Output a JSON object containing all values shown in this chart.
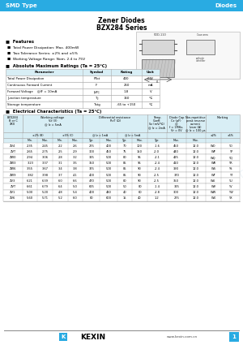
{
  "header_bg": "#29ABE2",
  "header_text_left": "SMD Type",
  "header_text_right": "Diodes",
  "title1": "Zener Diodes",
  "title2": "BZX284 Series",
  "features_header": "■  Features",
  "features": [
    "■  Total Power Dissipation: Max. 400mW",
    "■  Two Tolerance Series: ±2% and ±5%",
    "■  Working Voltage Range: Nom. 2.4 to 75V"
  ],
  "abs_max_header": "■  Absolute Maximum Ratings (Ta = 25℃)",
  "abs_max_cols": [
    "Parameter",
    "Symbol",
    "Rating",
    "Unit"
  ],
  "abs_max_rows": [
    [
      "Total Power Dissipation",
      "PTot",
      "400",
      "mW"
    ],
    [
      "Continuous Forward Current",
      "IF",
      "250",
      "mA"
    ],
    [
      "Forward Voltage    @IF = 10mA",
      "|VF|",
      "1.8",
      "V"
    ],
    [
      "Junction temperature",
      "Tj",
      "150",
      "℃"
    ],
    [
      "Storage temperature",
      "Tstg",
      "-65 to +150",
      "℃"
    ]
  ],
  "elec_header": "■  Electrical Characteristics (Ta = 25℃)",
  "elec_rows": [
    [
      "ZV4",
      "2.35",
      "2.45",
      "2.2",
      "2.6",
      "275",
      "400",
      "70",
      "100",
      "-1.6",
      "450",
      "12.0",
      "WO",
      "YO"
    ],
    [
      "ZVT",
      "2.65",
      "2.75",
      "2.5",
      "2.9",
      "300",
      "450",
      "75",
      "150",
      "-2.0",
      "440",
      "12.0",
      "WP",
      "YP"
    ],
    [
      "ZW0",
      "2.94",
      "3.06",
      "2.8",
      "3.2",
      "325",
      "500",
      "80",
      "95",
      "-2.1",
      "425",
      "12.0",
      "WQ",
      "YQ"
    ],
    [
      "ZW3",
      "3.23",
      "3.37",
      "3.1",
      "3.5",
      "350",
      "500",
      "85",
      "95",
      "-2.4",
      "410",
      "12.0",
      "WR",
      "YR"
    ],
    [
      "ZW6",
      "3.55",
      "3.67",
      "3.4",
      "3.8",
      "375",
      "500",
      "85",
      "90",
      "-2.4",
      "390",
      "12.0",
      "WS",
      "YS"
    ],
    [
      "ZW9",
      "3.82",
      "3.98",
      "3.7",
      "4.1",
      "400",
      "500",
      "85",
      "90",
      "-2.5",
      "370",
      "12.0",
      "WT",
      "YT"
    ],
    [
      "ZV3",
      "6.21",
      "6.39",
      "6.0",
      "6.6",
      "470",
      "500",
      "80",
      "90",
      "-2.5",
      "350",
      "12.0",
      "WU",
      "YU"
    ],
    [
      "ZVT",
      "6.61",
      "6.79",
      "6.4",
      "5.0",
      "625",
      "500",
      "50",
      "80",
      "-1.4",
      "325",
      "12.0",
      "WV",
      "YV"
    ],
    [
      "ZV1",
      "5.00",
      "5.20",
      "4.8",
      "5.4",
      "400",
      "480",
      "40",
      "60",
      "-2.8",
      "300",
      "12.0",
      "WW",
      "YW"
    ],
    [
      "ZV6",
      "5.60",
      "5.71",
      "5.2",
      "6.0",
      "80",
      "600",
      "15",
      "40",
      "1.2",
      "275",
      "12.0",
      "WX",
      "YX"
    ]
  ],
  "footer_logo": "KEXIN",
  "footer_url": "www.kexin.com.cn",
  "bg_color": "#ffffff",
  "table_header_bg": "#E8F4F8",
  "table_border": "#aaaaaa",
  "header_row_bg": "#D8EEF5"
}
